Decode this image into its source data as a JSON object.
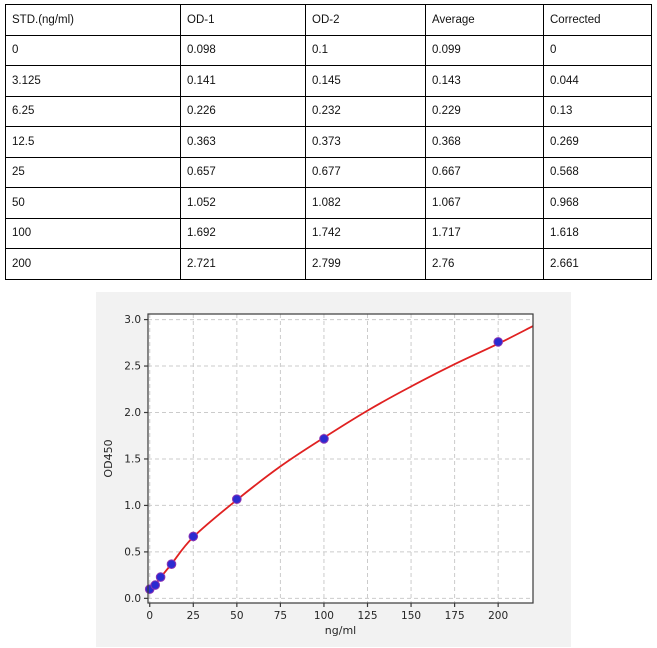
{
  "table": {
    "columns": [
      "STD.(ng/ml)",
      "OD-1",
      "OD-2",
      "Average",
      "Corrected"
    ],
    "rows": [
      [
        "0",
        "0.098",
        "0.1",
        "0.099",
        "0"
      ],
      [
        "3.125",
        "0.141",
        "0.145",
        "0.143",
        "0.044"
      ],
      [
        "6.25",
        "0.226",
        "0.232",
        "0.229",
        "0.13"
      ],
      [
        "12.5",
        "0.363",
        "0.373",
        "0.368",
        "0.269"
      ],
      [
        "25",
        "0.657",
        "0.677",
        "0.667",
        "0.568"
      ],
      [
        "50",
        "1.052",
        "1.082",
        "1.067",
        "0.968"
      ],
      [
        "100",
        "1.692",
        "1.742",
        "1.717",
        "1.618"
      ],
      [
        "200",
        "2.721",
        "2.799",
        "2.76",
        "2.661"
      ]
    ]
  },
  "chart_data": {
    "type": "scatter",
    "title": "",
    "xlabel": "ng/ml",
    "ylabel": "OD450",
    "xlim": [
      -1,
      220
    ],
    "ylim": [
      -0.05,
      3.06
    ],
    "x_ticks": [
      0,
      25,
      50,
      75,
      100,
      125,
      150,
      175,
      200
    ],
    "y_ticks": [
      0.0,
      0.5,
      1.0,
      1.5,
      2.0,
      2.5,
      3.0
    ],
    "y_tick_labels": [
      "0.0",
      "0.5",
      "1.0",
      "1.5",
      "2.0",
      "2.5",
      "3.0"
    ],
    "grid": "dashed",
    "legend": "none",
    "series": [
      {
        "name": "standards-average",
        "style": "points",
        "x": [
          0,
          3.125,
          6.25,
          12.5,
          25,
          50,
          100,
          200
        ],
        "y": [
          0.099,
          0.143,
          0.229,
          0.368,
          0.667,
          1.067,
          1.717,
          2.76
        ]
      },
      {
        "name": "fit-curve",
        "style": "line",
        "x": [
          0,
          3.125,
          6.25,
          12.5,
          25,
          50,
          75,
          100,
          125,
          150,
          175,
          200,
          220
        ],
        "y": [
          0.08,
          0.145,
          0.225,
          0.37,
          0.66,
          1.06,
          1.42,
          1.73,
          2.02,
          2.28,
          2.52,
          2.74,
          2.93
        ]
      }
    ],
    "colors": {
      "curve": "#e02121",
      "marker_fill": "#2b2bd0",
      "marker_edge": "#8a32b4",
      "panel_bg": "#f2f2f2",
      "plot_bg": "#ffffff",
      "grid": "#cbcbcb",
      "spine": "#3a3a3a",
      "text": "#262626"
    }
  }
}
